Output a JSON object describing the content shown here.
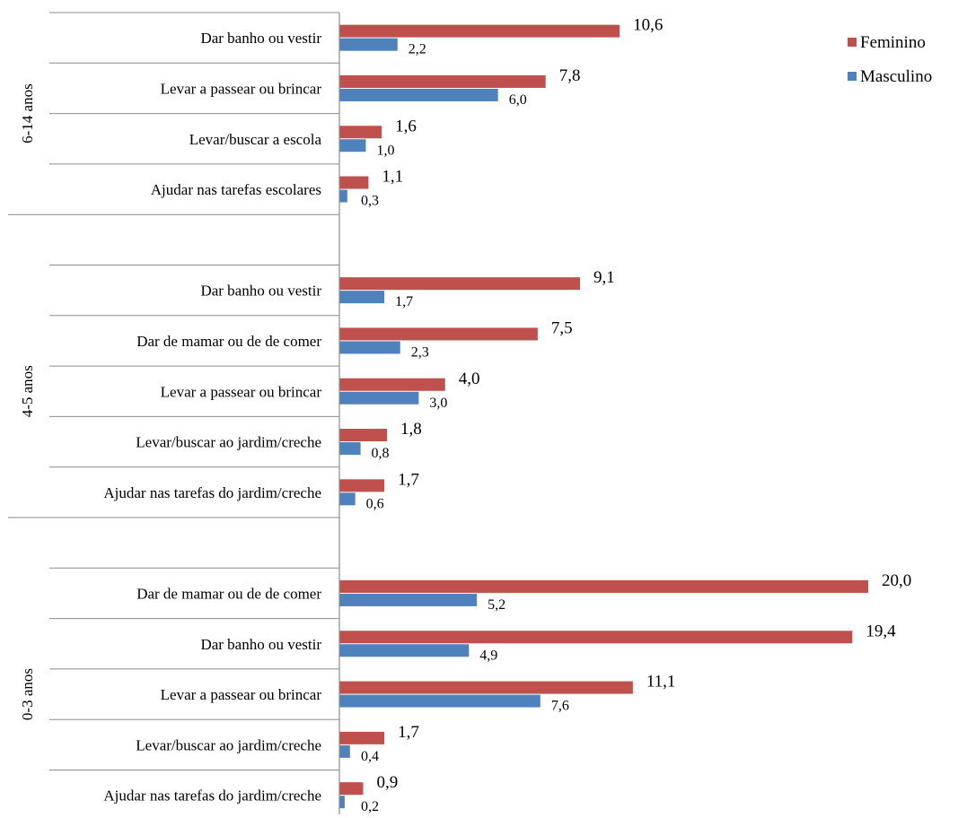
{
  "chart_data": {
    "type": "bar",
    "orientation": "horizontal",
    "legend_position": "top-right",
    "grid": false,
    "xlim": [
      0,
      20.5
    ],
    "colors": {
      "Feminino": "#c0504d",
      "Masculino": "#4f81bd"
    },
    "legend": [
      "Feminino",
      "Masculino"
    ],
    "groups": [
      {
        "label": "6-14 anos",
        "categories": [
          {
            "label": "Dar banho ou vestir",
            "Feminino": 10.6,
            "Masculino": 2.2,
            "Feminino_label": "10,6",
            "Masculino_label": "2,2"
          },
          {
            "label": "Levar a passear ou brincar",
            "Feminino": 7.8,
            "Masculino": 6.0,
            "Feminino_label": "7,8",
            "Masculino_label": "6,0"
          },
          {
            "label": "Levar/buscar a escola",
            "Feminino": 1.6,
            "Masculino": 1.0,
            "Feminino_label": "1,6",
            "Masculino_label": "1,0"
          },
          {
            "label": "Ajudar nas tarefas escolares",
            "Feminino": 1.1,
            "Masculino": 0.3,
            "Feminino_label": "1,1",
            "Masculino_label": "0,3"
          }
        ]
      },
      {
        "label": "4-5 anos",
        "categories": [
          {
            "label": "Dar banho ou vestir",
            "Feminino": 9.1,
            "Masculino": 1.7,
            "Feminino_label": "9,1",
            "Masculino_label": "1,7"
          },
          {
            "label": "Dar de mamar ou de de comer",
            "Feminino": 7.5,
            "Masculino": 2.3,
            "Feminino_label": "7,5",
            "Masculino_label": "2,3"
          },
          {
            "label": "Levar a passear ou brincar",
            "Feminino": 4.0,
            "Masculino": 3.0,
            "Feminino_label": "4,0",
            "Masculino_label": "3,0"
          },
          {
            "label": "Levar/buscar ao jardim/creche",
            "Feminino": 1.8,
            "Masculino": 0.8,
            "Feminino_label": "1,8",
            "Masculino_label": "0,8"
          },
          {
            "label": "Ajudar nas tarefas do jardim/creche",
            "Feminino": 1.7,
            "Masculino": 0.6,
            "Feminino_label": "1,7",
            "Masculino_label": "0,6"
          }
        ]
      },
      {
        "label": "0-3 anos",
        "categories": [
          {
            "label": "Dar de mamar ou de de comer",
            "Feminino": 20.0,
            "Masculino": 5.2,
            "Feminino_label": "20,0",
            "Masculino_label": "5,2"
          },
          {
            "label": "Dar banho ou vestir",
            "Feminino": 19.4,
            "Masculino": 4.9,
            "Feminino_label": "19,4",
            "Masculino_label": "4,9"
          },
          {
            "label": "Levar a passear ou brincar",
            "Feminino": 11.1,
            "Masculino": 7.6,
            "Feminino_label": "11,1",
            "Masculino_label": "7,6"
          },
          {
            "label": "Levar/buscar ao jardim/creche",
            "Feminino": 1.7,
            "Masculino": 0.4,
            "Feminino_label": "1,7",
            "Masculino_label": "0,4"
          },
          {
            "label": "Ajudar nas tarefas do jardim/creche",
            "Feminino": 0.9,
            "Masculino": 0.2,
            "Feminino_label": "0,9",
            "Masculino_label": "0,2"
          }
        ]
      }
    ]
  }
}
